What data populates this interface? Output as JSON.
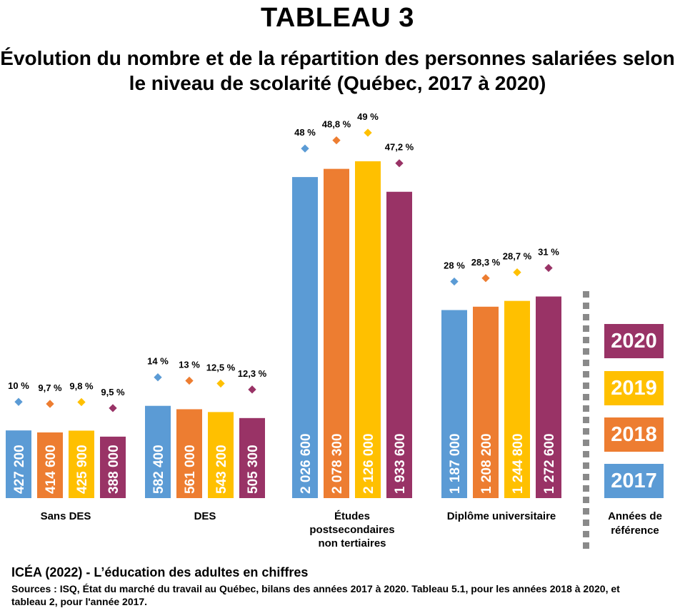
{
  "title": "TABLEAU 3",
  "subtitle": "Évolution du nombre et de la répartition des personnes salariées selon le niveau de scolarité (Québec, 2017 à 2020)",
  "legend": {
    "title": "Années de référence",
    "items": [
      {
        "label": "2020",
        "color": "#993366"
      },
      {
        "label": "2019",
        "color": "#FFC000"
      },
      {
        "label": "2018",
        "color": "#ED7D31"
      },
      {
        "label": "2017",
        "color": "#5B9BD5"
      }
    ]
  },
  "source": {
    "title": "ICÉA (2022) - L’éducation des adultes en chiffres",
    "text": "Sources : ISQ, État du marché du travail au Québec, bilans des années 2017 à 2020. Tableau 5.1, pour les années 2018 à 2020, et tableau 2, pour l'année 2017."
  },
  "chart_data": {
    "type": "bar",
    "categories": [
      "Sans DES",
      "DES",
      "Études postsecondaires non tertiaires",
      "Diplôme universitaire"
    ],
    "series": [
      {
        "name": "2017",
        "color": "#5B9BD5",
        "values": [
          427200,
          582400,
          2026600,
          1187000
        ],
        "value_labels": [
          "427 200",
          "582 400",
          "2 026 600",
          "1 187 000"
        ],
        "shares": [
          "10 %",
          "14 %",
          "48 %",
          "28 %"
        ]
      },
      {
        "name": "2018",
        "color": "#ED7D31",
        "values": [
          414600,
          561000,
          2078300,
          1208200
        ],
        "value_labels": [
          "414 600",
          "561 000",
          "2 078 300",
          "1 208 200"
        ],
        "shares": [
          "9,7 %",
          "13 %",
          "48,8 %",
          "28,3 %"
        ]
      },
      {
        "name": "2019",
        "color": "#FFC000",
        "values": [
          425900,
          543200,
          2126000,
          1244800
        ],
        "value_labels": [
          "425 900",
          "543 200",
          "2 126 000",
          "1 244 800"
        ],
        "shares": [
          "9,8 %",
          "12,5 %",
          "49 %",
          "28,7 %"
        ]
      },
      {
        "name": "2020",
        "color": "#993366",
        "values": [
          388000,
          505300,
          1933600,
          1272600
        ],
        "value_labels": [
          "388 000",
          "505 300",
          "1 933 600",
          "1 272 600"
        ],
        "shares": [
          "9,5 %",
          "12,3 %",
          "47,2 %",
          "31 %"
        ]
      }
    ],
    "share_values": [
      [
        10,
        14,
        48,
        28
      ],
      [
        9.7,
        13,
        48.8,
        28.3
      ],
      [
        9.8,
        12.5,
        49,
        28.7
      ],
      [
        9.5,
        12.3,
        47.2,
        31
      ]
    ],
    "xlabel": "",
    "ylabel": "",
    "ylim": [
      0,
      2200000
    ],
    "grid": false,
    "legend_position": "right"
  }
}
